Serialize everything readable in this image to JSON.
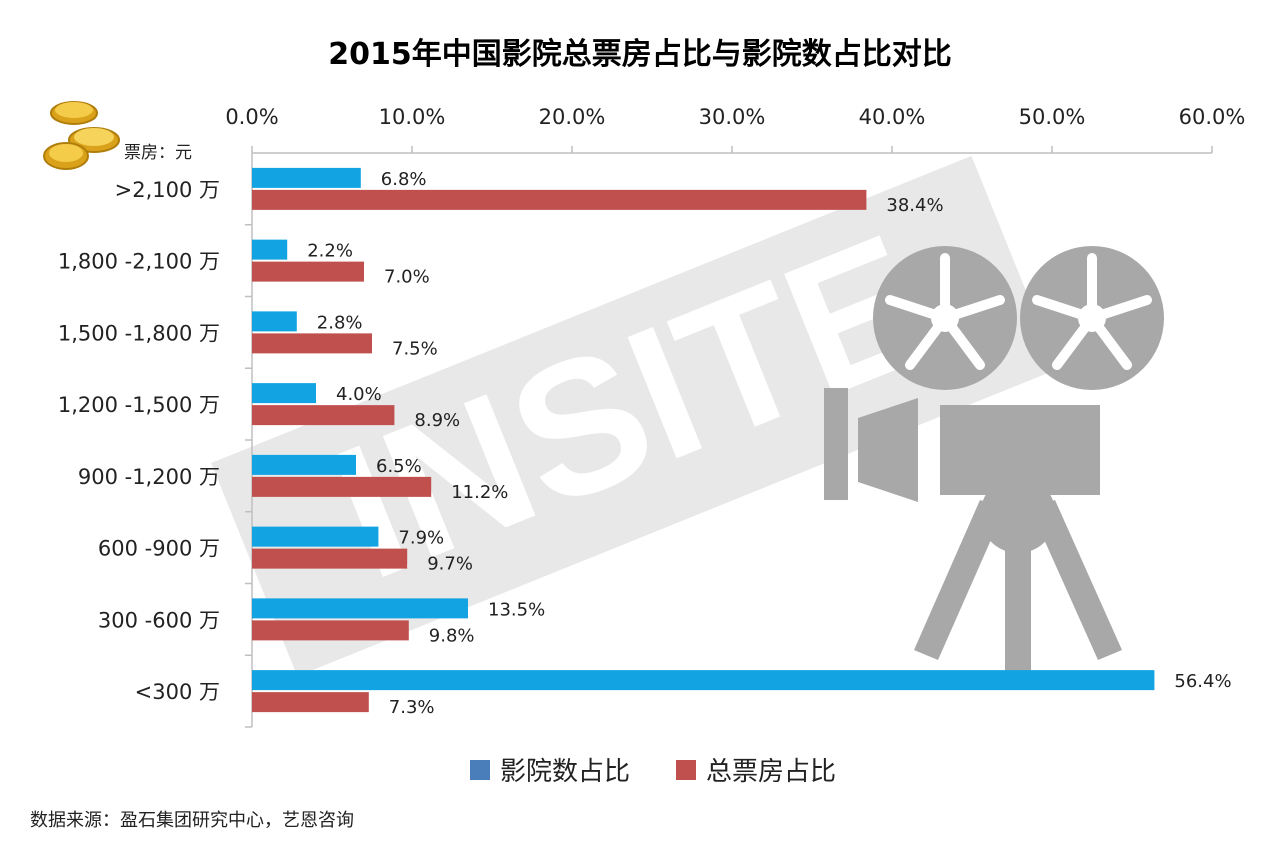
{
  "chart_data": {
    "type": "bar",
    "orientation": "horizontal",
    "title": "2015年中国影院总票房占比与影院数占比对比",
    "unit_label": "票房：元",
    "categories": [
      ">2,100 万",
      "1,800 -2,100 万",
      "1,500 -1,800 万",
      "1,200 -1,500 万",
      "900 -1,200 万",
      "600 -900 万",
      "300 -600 万",
      "<300 万"
    ],
    "xlim": [
      0,
      60
    ],
    "ticks": [
      "0.0%",
      "10.0%",
      "20.0%",
      "30.0%",
      "40.0%",
      "50.0%",
      "60.0%"
    ],
    "tick_values": [
      0,
      10,
      20,
      30,
      40,
      50,
      60
    ],
    "grid": false,
    "legend_position": "bottom",
    "series": [
      {
        "name": "影院数占比",
        "color": "#12A3E3",
        "legend_color": "#4A7EBB",
        "values": [
          6.8,
          2.2,
          2.8,
          4.0,
          6.5,
          7.9,
          13.5,
          56.4
        ],
        "labels": [
          "6.8%",
          "2.2%",
          "2.8%",
          "4.0%",
          "6.5%",
          "7.9%",
          "13.5%",
          "56.4%"
        ]
      },
      {
        "name": "总票房占比",
        "color": "#C0504D",
        "legend_color": "#C0504D",
        "values": [
          38.4,
          7.0,
          7.5,
          8.9,
          11.2,
          9.7,
          9.8,
          7.3
        ],
        "labels": [
          "38.4%",
          "7.0%",
          "7.5%",
          "8.9%",
          "11.2%",
          "9.7%",
          "9.8%",
          "7.3%"
        ]
      }
    ]
  },
  "source": "数据来源：盈石集团研究中心，艺恩咨询",
  "watermark": {
    "text": "INSITE",
    "icon": "film-projector-icon",
    "decor_icon": "gold-coins-icon"
  }
}
